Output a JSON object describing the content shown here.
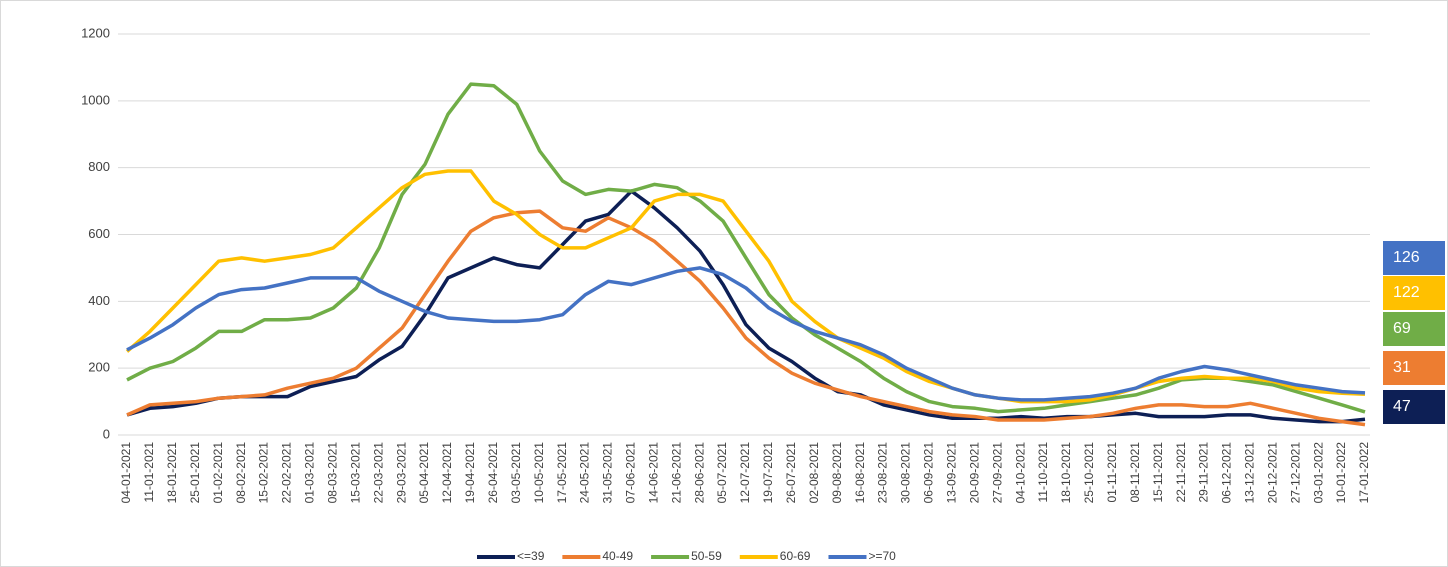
{
  "chart_data": {
    "type": "line",
    "categories": [
      "04-01-2021",
      "11-01-2021",
      "18-01-2021",
      "25-01-2021",
      "01-02-2021",
      "08-02-2021",
      "15-02-2021",
      "22-02-2021",
      "01-03-2021",
      "08-03-2021",
      "15-03-2021",
      "22-03-2021",
      "29-03-2021",
      "05-04-2021",
      "12-04-2021",
      "19-04-2021",
      "26-04-2021",
      "03-05-2021",
      "10-05-2021",
      "17-05-2021",
      "24-05-2021",
      "31-05-2021",
      "07-06-2021",
      "14-06-2021",
      "21-06-2021",
      "28-06-2021",
      "05-07-2021",
      "12-07-2021",
      "19-07-2021",
      "26-07-2021",
      "02-08-2021",
      "09-08-2021",
      "16-08-2021",
      "23-08-2021",
      "30-08-2021",
      "06-09-2021",
      "13-09-2021",
      "20-09-2021",
      "27-09-2021",
      "04-10-2021",
      "11-10-2021",
      "18-10-2021",
      "25-10-2021",
      "01-11-2021",
      "08-11-2021",
      "15-11-2021",
      "22-11-2021",
      "29-11-2021",
      "06-12-2021",
      "13-12-2021",
      "20-12-2021",
      "27-12-2021",
      "03-01-2022",
      "10-01-2022",
      "17-01-2022"
    ],
    "series": [
      {
        "name": "<=39",
        "color": "#0d1f55",
        "values": [
          60,
          80,
          85,
          95,
          110,
          115,
          115,
          115,
          145,
          160,
          175,
          225,
          265,
          360,
          470,
          500,
          530,
          510,
          500,
          570,
          640,
          660,
          730,
          680,
          620,
          550,
          450,
          330,
          260,
          220,
          170,
          130,
          120,
          90,
          75,
          60,
          50,
          50,
          50,
          55,
          50,
          55,
          55,
          60,
          65,
          55,
          55,
          55,
          60,
          60,
          50,
          45,
          40,
          40,
          47
        ]
      },
      {
        "name": "40-49",
        "color": "#ed7d31",
        "values": [
          60,
          90,
          95,
          100,
          110,
          115,
          120,
          140,
          155,
          170,
          200,
          260,
          320,
          420,
          520,
          610,
          650,
          665,
          670,
          620,
          610,
          650,
          620,
          580,
          520,
          460,
          380,
          290,
          230,
          185,
          155,
          135,
          115,
          100,
          85,
          70,
          60,
          55,
          45,
          45,
          45,
          50,
          55,
          65,
          80,
          90,
          90,
          85,
          85,
          95,
          80,
          65,
          50,
          40,
          31
        ]
      },
      {
        "name": "50-59",
        "color": "#70ad47",
        "values": [
          165,
          200,
          220,
          260,
          310,
          310,
          345,
          345,
          350,
          380,
          440,
          560,
          720,
          810,
          960,
          1050,
          1045,
          990,
          850,
          760,
          720,
          735,
          730,
          750,
          740,
          700,
          640,
          530,
          420,
          350,
          300,
          260,
          220,
          170,
          130,
          100,
          85,
          80,
          70,
          75,
          80,
          90,
          100,
          110,
          120,
          140,
          165,
          170,
          170,
          160,
          150,
          130,
          110,
          90,
          69
        ]
      },
      {
        "name": "60-69",
        "color": "#ffc000",
        "values": [
          250,
          310,
          380,
          450,
          520,
          530,
          520,
          530,
          540,
          560,
          620,
          680,
          740,
          780,
          790,
          790,
          700,
          660,
          600,
          560,
          560,
          590,
          620,
          700,
          720,
          720,
          700,
          610,
          520,
          400,
          340,
          290,
          260,
          230,
          190,
          160,
          140,
          120,
          110,
          100,
          100,
          100,
          105,
          120,
          140,
          160,
          170,
          175,
          170,
          170,
          160,
          140,
          130,
          125,
          122
        ]
      },
      {
        "name": ">=70",
        "color": "#4472c4",
        "values": [
          255,
          290,
          330,
          380,
          420,
          435,
          440,
          455,
          470,
          470,
          470,
          430,
          400,
          370,
          350,
          345,
          340,
          340,
          345,
          360,
          420,
          460,
          450,
          470,
          490,
          500,
          480,
          440,
          380,
          340,
          310,
          290,
          270,
          240,
          200,
          170,
          140,
          120,
          110,
          105,
          105,
          110,
          115,
          125,
          140,
          170,
          190,
          205,
          195,
          180,
          165,
          150,
          140,
          130,
          126
        ]
      }
    ],
    "ylim": [
      0,
      1200
    ],
    "yticks": [
      0,
      200,
      400,
      600,
      800,
      1000,
      1200
    ],
    "grid": true
  }
}
